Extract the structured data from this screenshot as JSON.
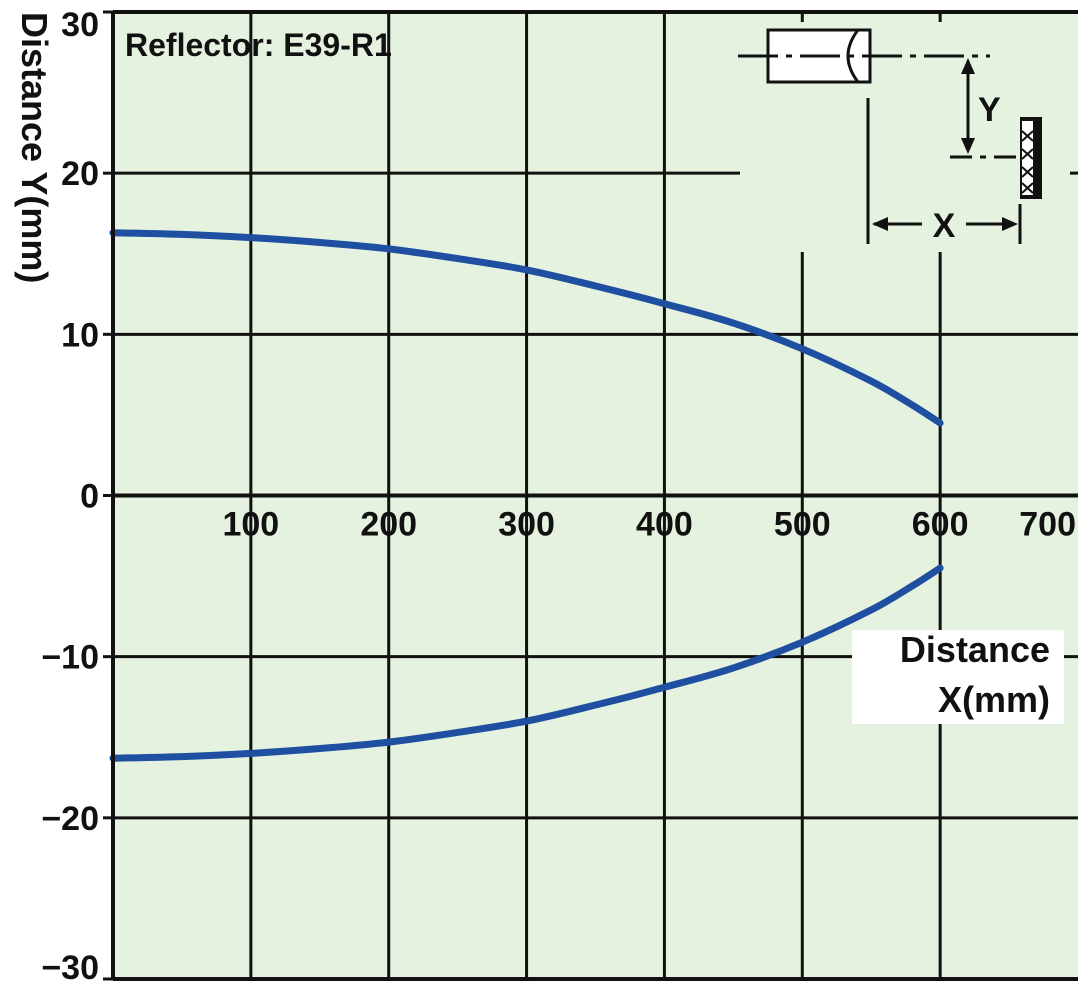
{
  "chart_data": {
    "type": "line",
    "title": "",
    "annotation": "Reflector: E39-R1",
    "xlabel_line1": "Distance",
    "xlabel_line2": "X(mm)",
    "ylabel": "Distance  Y(mm)",
    "xlim": [
      0,
      700
    ],
    "ylim": [
      -30,
      30
    ],
    "x_ticks": [
      100,
      200,
      300,
      400,
      500,
      600,
      700
    ],
    "x_tick_labels": [
      "100",
      "200",
      "300",
      "400",
      "500",
      "600",
      "700"
    ],
    "y_ticks": [
      30,
      20,
      10,
      0,
      -10,
      -20,
      -30
    ],
    "y_tick_labels": [
      "30",
      "20",
      "10",
      "0",
      "−10",
      "−20",
      "−30"
    ],
    "grid": true,
    "line_color": "#1f4fa0",
    "plot_background": "#e4f2df",
    "series": [
      {
        "x": [
          0,
          50,
          100,
          150,
          200,
          250,
          300,
          350,
          400,
          450,
          500,
          550,
          580,
          600
        ],
        "y": [
          16.3,
          16.2,
          16.0,
          15.7,
          15.3,
          14.7,
          14.0,
          13.0,
          11.9,
          10.7,
          9.1,
          7.1,
          5.6,
          4.5
        ]
      },
      {
        "x": [
          0,
          50,
          100,
          150,
          200,
          250,
          300,
          350,
          400,
          450,
          500,
          550,
          580,
          600
        ],
        "y": [
          -16.3,
          -16.2,
          -16.0,
          -15.7,
          -15.3,
          -14.7,
          -14.0,
          -13.0,
          -11.9,
          -10.7,
          -9.1,
          -7.1,
          -5.6,
          -4.5
        ]
      }
    ],
    "diagram": {
      "y_label": "Y",
      "x_label": "X"
    }
  }
}
